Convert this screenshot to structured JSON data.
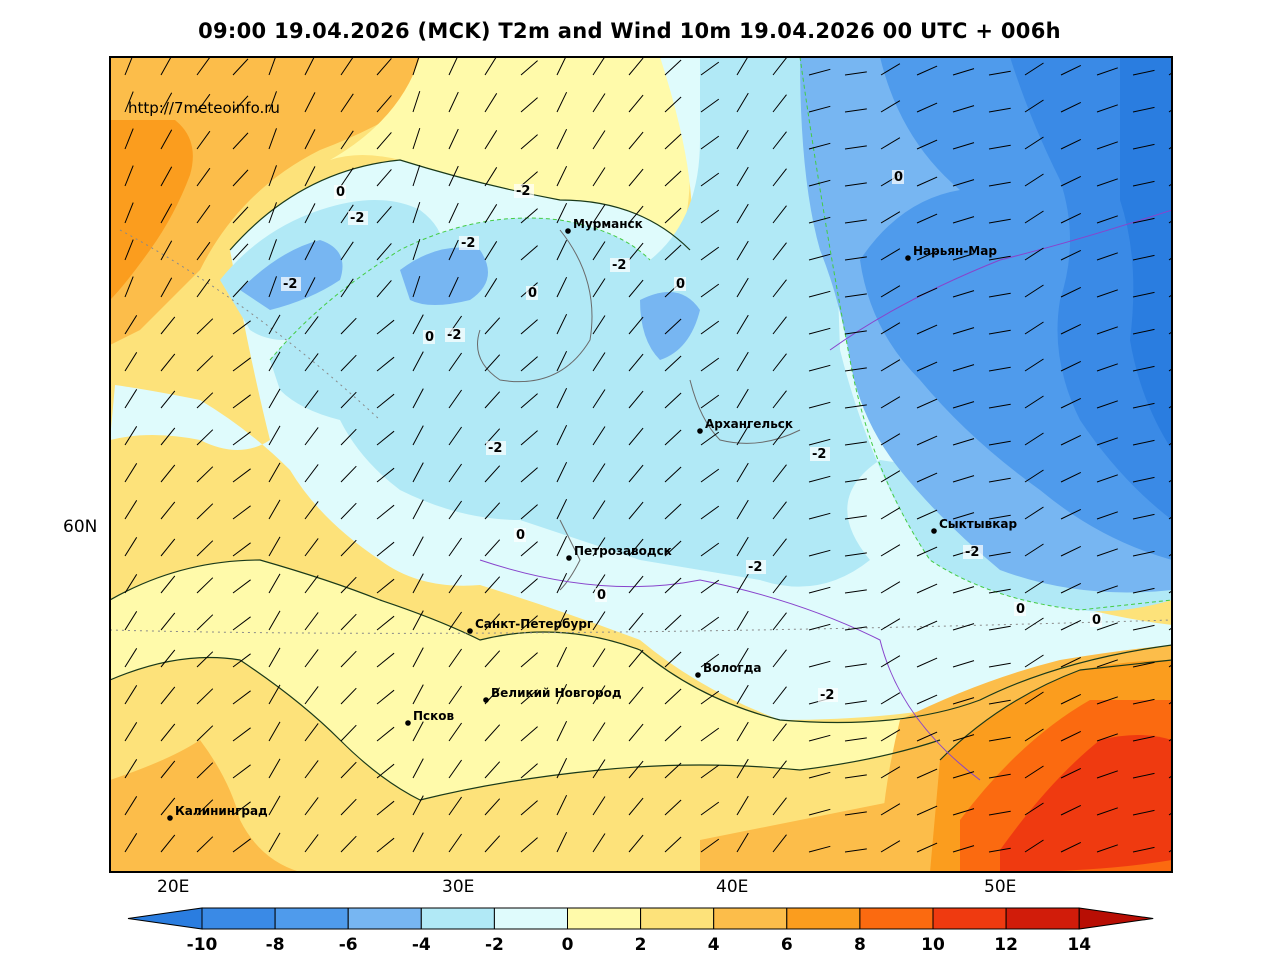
{
  "title": "09:00 19.04.2026 (MCK) T2m and Wind 10m 19.04.2026 00 UTC + 006h",
  "site": "http://7meteoinfo.ru",
  "axes": {
    "lat_labels": [
      "60N"
    ],
    "lon_labels": [
      "20E",
      "30E",
      "40E",
      "50E"
    ]
  },
  "cities": [
    {
      "name": "Мурманск"
    },
    {
      "name": "Нарьян-Мар"
    },
    {
      "name": "Архангельск"
    },
    {
      "name": "Сыктывкар"
    },
    {
      "name": "Петрозаводск"
    },
    {
      "name": "Санкт-Петербург"
    },
    {
      "name": "Вологда"
    },
    {
      "name": "Великий Новгород"
    },
    {
      "name": "Псков"
    },
    {
      "name": "Калининград"
    }
  ],
  "contour_labels": [
    "0",
    "-2",
    "-2",
    "0",
    "-2",
    "-2",
    "-2",
    "0",
    "-2",
    "0",
    "-2",
    "-2",
    "0",
    "0",
    "0",
    "-2",
    "-2",
    "0",
    "0",
    "-2"
  ],
  "colorbar": {
    "ticks": [
      "-10",
      "-8",
      "-6",
      "-4",
      "-2",
      "0",
      "2",
      "4",
      "6",
      "8",
      "10",
      "12",
      "14"
    ],
    "colors": [
      "#2a7de0",
      "#3a8ae6",
      "#4f9bec",
      "#77b6f2",
      "#b1e9f6",
      "#dffbfc",
      "#fffaaa",
      "#fde27a",
      "#fcbd4a",
      "#fb9d1e",
      "#fb6a10",
      "#ef3a10",
      "#d11c0a",
      "#b80e04"
    ]
  }
}
